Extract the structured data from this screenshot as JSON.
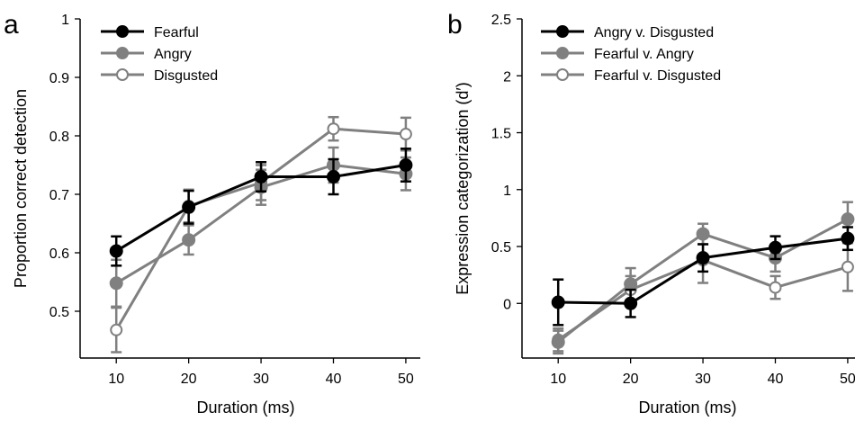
{
  "chart_data": [
    {
      "panel_letter": "a",
      "type": "line",
      "xlabel": "Duration (ms)",
      "ylabel": "Proportion correct detection",
      "x": [
        10,
        20,
        30,
        40,
        50
      ],
      "xlim": [
        5,
        52
      ],
      "ylim": [
        0.42,
        1.0
      ],
      "xticks": [
        10,
        20,
        30,
        40,
        50
      ],
      "yticks": [
        0.5,
        0.6,
        0.7,
        0.8,
        0.9,
        1
      ],
      "ytick_labels": [
        "0.5",
        "0.6",
        "0.7",
        "0.8",
        "0.9",
        "1"
      ],
      "grid": false,
      "legend_placement": "top-left",
      "series": [
        {
          "name": "Fearful",
          "marker": "filled",
          "color": "#000000",
          "values": [
            0.603,
            0.678,
            0.73,
            0.73,
            0.75
          ],
          "errors": [
            0.025,
            0.028,
            0.025,
            0.03,
            0.028
          ]
        },
        {
          "name": "Angry",
          "marker": "filled",
          "color": "#808080",
          "values": [
            0.548,
            0.622,
            0.712,
            0.75,
            0.735
          ],
          "errors": [
            0.04,
            0.025,
            0.03,
            0.03,
            0.028
          ]
        },
        {
          "name": "Disgusted",
          "marker": "open",
          "color": "#808080",
          "values": [
            0.468,
            0.68,
            0.72,
            0.812,
            0.803
          ],
          "errors": [
            0.038,
            0.028,
            0.03,
            0.02,
            0.028
          ]
        }
      ]
    },
    {
      "panel_letter": "b",
      "type": "line",
      "xlabel": "Duration (ms)",
      "ylabel": "Expression categorization (d′)",
      "x": [
        10,
        20,
        30,
        40,
        50
      ],
      "xlim": [
        5,
        52
      ],
      "ylim": [
        -0.48,
        2.5
      ],
      "xticks": [
        10,
        20,
        30,
        40,
        50
      ],
      "yticks": [
        0,
        0.5,
        1,
        1.5,
        2,
        2.5
      ],
      "ytick_labels": [
        "0",
        "0.5",
        "1",
        "1.5",
        "2",
        "2.5"
      ],
      "grid": false,
      "legend_placement": "top-left",
      "series": [
        {
          "name": "Angry v. Disgusted",
          "marker": "filled",
          "color": "#000000",
          "values": [
            0.01,
            0.0,
            0.4,
            0.49,
            0.57
          ],
          "errors": [
            0.2,
            0.12,
            0.12,
            0.1,
            0.1
          ]
        },
        {
          "name": "Fearful v. Angry",
          "marker": "filled",
          "color": "#808080",
          "values": [
            -0.34,
            0.17,
            0.61,
            0.4,
            0.74
          ],
          "errors": [
            0.1,
            0.14,
            0.09,
            0.12,
            0.15
          ]
        },
        {
          "name": "Fearful v. Disgusted",
          "marker": "open",
          "color": "#808080",
          "values": [
            -0.32,
            0.12,
            0.38,
            0.14,
            0.32
          ],
          "errors": [
            0.1,
            0.12,
            0.2,
            0.1,
            0.21
          ]
        }
      ]
    }
  ]
}
